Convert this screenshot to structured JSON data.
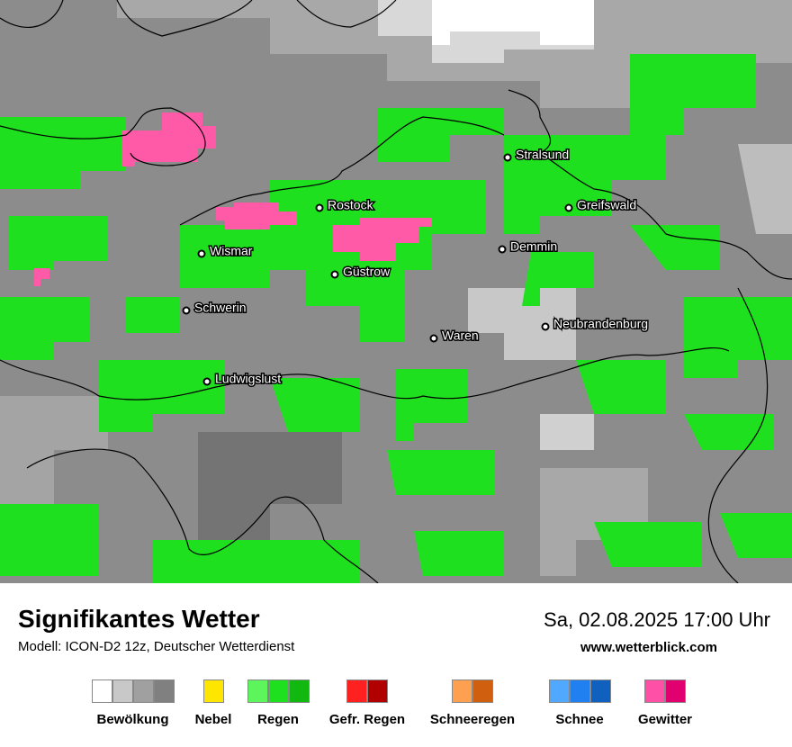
{
  "header": {
    "title": "Signifikantes Wetter",
    "model": "Modell: ICON-D2 12z, Deutscher Wetterdienst",
    "datetime": "Sa, 02.08.2025 17:00 Uhr",
    "website": "www.wetterblick.com"
  },
  "cities": [
    "Stralsund",
    "Greifswald",
    "Rostock",
    "Demmin",
    "Wismar",
    "Güstrow",
    "Schwerin",
    "Neubrandenburg",
    "Waren",
    "Ludwigslust"
  ],
  "legend": [
    {
      "label": "Bewölkung",
      "colors": [
        "#ffffff",
        "#c8c8c8",
        "#a0a0a0",
        "#808080"
      ]
    },
    {
      "label": "Nebel",
      "colors": [
        "#ffe600"
      ]
    },
    {
      "label": "Regen",
      "colors": [
        "#5cf55c",
        "#1ee01e",
        "#10b810"
      ]
    },
    {
      "label": "Gefr. Regen",
      "colors": [
        "#ff2020",
        "#b00000"
      ]
    },
    {
      "label": "Schneeregen",
      "colors": [
        "#ffa050",
        "#d06010"
      ]
    },
    {
      "label": "Schnee",
      "colors": [
        "#50a8ff",
        "#2080f0",
        "#1060c0"
      ]
    },
    {
      "label": "Gewitter",
      "colors": [
        "#ff50a8",
        "#e00070"
      ]
    }
  ]
}
